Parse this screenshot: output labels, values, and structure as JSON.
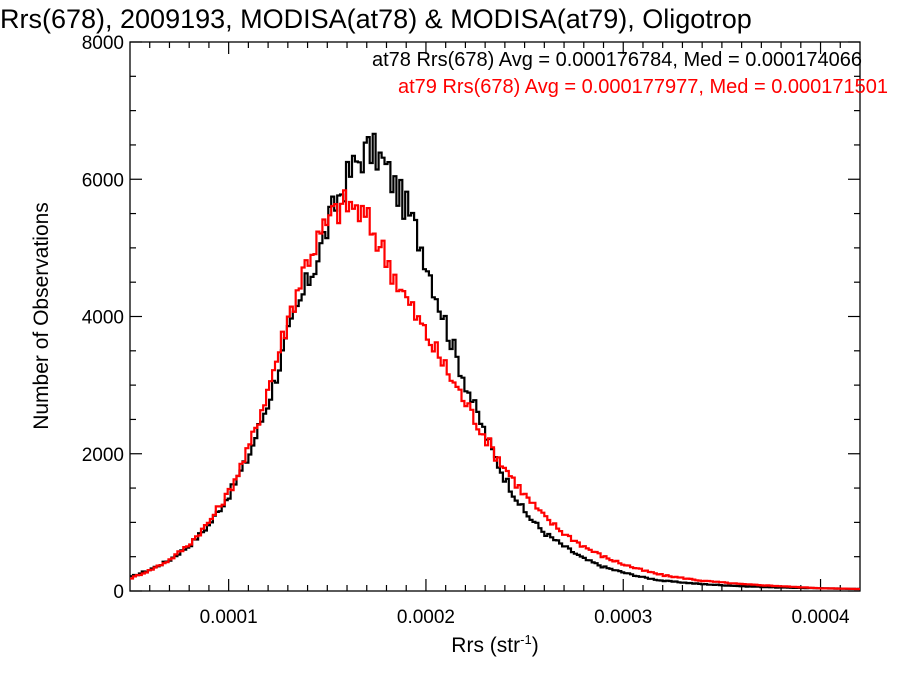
{
  "chart_data": {
    "type": "line",
    "step": true,
    "title": "Rrs(678), 2009193, MODISA(at78) & MODISA(at79), Oligotrop",
    "xlabel": "Rrs (str",
    "xlabel_exponent": "-1",
    "xlabel_close": ")",
    "ylabel": "Number of Observations",
    "xlim": [
      5e-05,
      0.00042
    ],
    "ylim": [
      0,
      8000
    ],
    "xticks": [
      0.0001,
      0.0002,
      0.0003,
      0.0004
    ],
    "xtick_labels": [
      "0.0001",
      "0.0002",
      "0.0003",
      "0.0004"
    ],
    "yticks": [
      0,
      2000,
      4000,
      6000,
      8000
    ],
    "ytick_labels": [
      "0",
      "2000",
      "4000",
      "6000",
      "8000"
    ],
    "grid": false,
    "legend_position": "top-right",
    "series": [
      {
        "name": "at78",
        "color": "#000000",
        "legend": "at78 Rrs(678) Avg = 0.000176784, Med = 0.000174066",
        "x": [
          5e-05,
          6e-05,
          7e-05,
          8e-05,
          9e-05,
          0.0001,
          0.00011,
          0.00012,
          0.00013,
          0.000135,
          0.00014,
          0.000145,
          0.00015,
          0.000155,
          0.00016,
          0.000165,
          0.00017,
          0.000175,
          0.00018,
          0.000185,
          0.00019,
          0.000195,
          0.0002,
          0.000205,
          0.00021,
          0.000215,
          0.00022,
          0.000225,
          0.00023,
          0.000235,
          0.00024,
          0.000245,
          0.00025,
          0.00026,
          0.00027,
          0.00028,
          0.00029,
          0.0003,
          0.00031,
          0.00032,
          0.00034,
          0.00036,
          0.00038,
          0.0004,
          0.00042
        ],
        "values": [
          200,
          310,
          450,
          660,
          960,
          1390,
          1950,
          2750,
          3700,
          4100,
          4500,
          4850,
          5300,
          5700,
          6000,
          6250,
          6420,
          6380,
          6150,
          5850,
          5600,
          5250,
          4850,
          4350,
          3900,
          3450,
          3050,
          2650,
          2300,
          1950,
          1650,
          1400,
          1150,
          850,
          650,
          470,
          350,
          270,
          200,
          150,
          100,
          70,
          50,
          40,
          30
        ]
      },
      {
        "name": "at79",
        "color": "#ff0000",
        "legend": "at79 Rrs(678) Avg = 0.000177977, Med = 0.000171501",
        "x": [
          5e-05,
          6e-05,
          7e-05,
          8e-05,
          9e-05,
          0.0001,
          0.00011,
          0.00012,
          0.00013,
          0.000135,
          0.00014,
          0.000145,
          0.00015,
          0.000155,
          0.00016,
          0.000165,
          0.00017,
          0.000175,
          0.00018,
          0.000185,
          0.00019,
          0.000195,
          0.0002,
          0.000205,
          0.00021,
          0.000215,
          0.00022,
          0.000225,
          0.00023,
          0.000235,
          0.00024,
          0.000245,
          0.00025,
          0.00026,
          0.00027,
          0.00028,
          0.00029,
          0.0003,
          0.00031,
          0.00032,
          0.00034,
          0.00036,
          0.00038,
          0.0004,
          0.00042
        ],
        "values": [
          180,
          300,
          450,
          680,
          1000,
          1430,
          2050,
          2950,
          3950,
          4400,
          4850,
          5100,
          5350,
          5550,
          5650,
          5550,
          5400,
          5150,
          4850,
          4550,
          4250,
          4000,
          3750,
          3500,
          3250,
          3000,
          2750,
          2500,
          2250,
          2000,
          1800,
          1600,
          1400,
          1080,
          840,
          650,
          500,
          390,
          300,
          230,
          150,
          100,
          70,
          40,
          30
        ]
      }
    ]
  }
}
